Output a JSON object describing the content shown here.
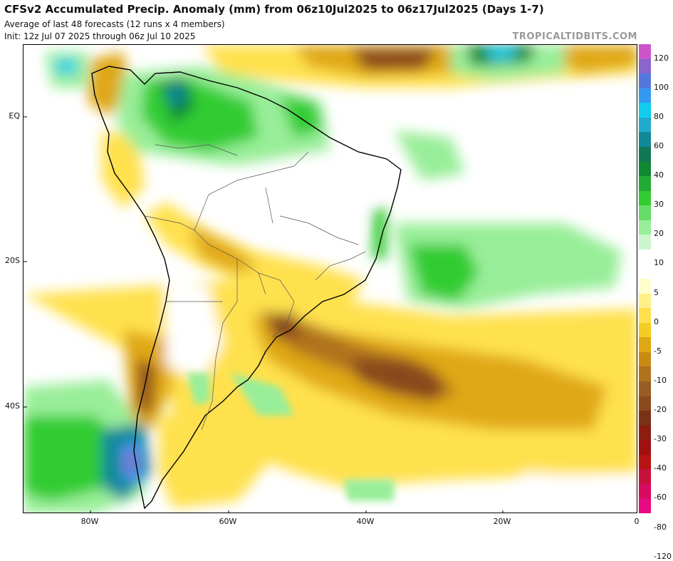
{
  "header": {
    "title": "CFSv2 Accumulated Precip. Anomaly (mm) from 06z10Jul2025 to 06z17Jul2025 (Days 1-7)",
    "subtitle1": "Average of last 48 forecasts (12 runs x 4 members)",
    "subtitle2": "Init: 12z Jul 07 2025 through 06z Jul 10 2025",
    "credit": "TROPICALTIDBITS.COM"
  },
  "axes": {
    "lat_labels": [
      "EQ",
      "20S",
      "40S"
    ],
    "lon_labels": [
      "80W",
      "60W",
      "40W",
      "20W",
      "0"
    ]
  },
  "colorbar": {
    "labels": [
      "120",
      "100",
      "80",
      "60",
      "40",
      "30",
      "20",
      "10",
      "5",
      "0",
      "-5",
      "-10",
      "-20",
      "-30",
      "-40",
      "-60",
      "-80",
      "-120"
    ],
    "colors": [
      "#cc55cc",
      "#8866cc",
      "#5577dd",
      "#3399ee",
      "#11ccee",
      "#22aacc",
      "#118899",
      "#117755",
      "#118833",
      "#22aa33",
      "#33cc33",
      "#66dd66",
      "#99ee99",
      "#ccf5cc",
      "#ffffff",
      "#ffffff",
      "#ffffcc",
      "#fff088",
      "#ffe14d",
      "#f5cc22",
      "#e0a815",
      "#c98a14",
      "#b0731c",
      "#985d22",
      "#8a4a1c",
      "#7a3115",
      "#8c1d10",
      "#a01010",
      "#b41414",
      "#c8103c",
      "#d80a60",
      "#e80a80"
    ]
  },
  "map_colors": {
    "ocean": "#ffffff",
    "land": "#ffffff",
    "wet_light": "#99ee99",
    "wet": "#33cc33",
    "wet_dark": "#118833",
    "wet_teal": "#118899",
    "wet_cyan": "#11ccee",
    "wet_blue": "#3399ee",
    "wet_purple": "#8866cc",
    "dry_light": "#ffffcc",
    "dry": "#ffe14d",
    "dry_mid": "#e0a815",
    "dry_brown": "#b0731c",
    "dry_dark": "#8a4a1c",
    "dry_red": "#8c1d10"
  }
}
